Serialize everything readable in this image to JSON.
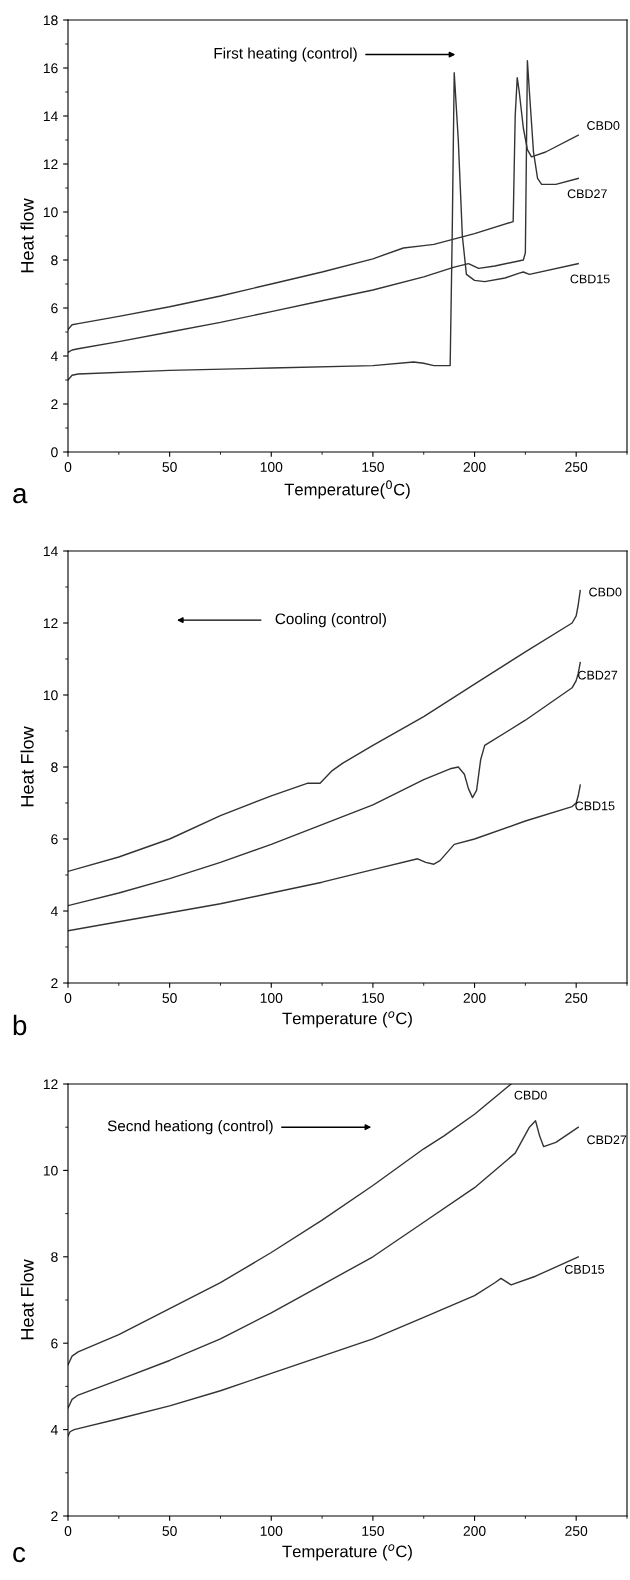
{
  "chart_data": [
    {
      "type": "line",
      "xlabel": "Temperature($^{0}$C)",
      "ylabel": "Heat flow",
      "xlim": [
        0,
        275
      ],
      "xticks": [
        0,
        50,
        100,
        150,
        200,
        250
      ],
      "ylim": [
        0,
        18
      ],
      "yticks": [
        0,
        2,
        4,
        6,
        8,
        10,
        12,
        14,
        16,
        18
      ],
      "grid": false,
      "legend": false,
      "annotations": [
        "First heating (control)",
        "a"
      ],
      "series": [
        {
          "name": "CBD0",
          "color": "#333333",
          "x": [
            0,
            2,
            5,
            25,
            50,
            75,
            100,
            125,
            150,
            165,
            175,
            180,
            200,
            219,
            220,
            221,
            222,
            224,
            226,
            228,
            235,
            251
          ],
          "values": [
            5.1,
            5.3,
            5.35,
            5.65,
            6.05,
            6.5,
            7.0,
            7.5,
            8.05,
            8.5,
            8.6,
            8.65,
            9.1,
            9.6,
            14.0,
            15.6,
            15.0,
            13.5,
            12.6,
            12.3,
            12.5,
            13.2
          ]
        },
        {
          "name": "CBD27",
          "color": "#333333",
          "x": [
            0,
            2,
            5,
            25,
            50,
            75,
            100,
            125,
            150,
            175,
            190,
            197,
            202,
            210,
            224,
            225,
            226,
            227,
            229,
            231,
            233,
            240,
            251
          ],
          "values": [
            4.15,
            4.25,
            4.3,
            4.6,
            5.0,
            5.4,
            5.85,
            6.3,
            6.75,
            7.3,
            7.7,
            7.85,
            7.65,
            7.75,
            8.0,
            8.3,
            16.3,
            15.0,
            12.5,
            11.4,
            11.15,
            11.15,
            11.4
          ]
        },
        {
          "name": "CBD15",
          "color": "#333333",
          "x": [
            0,
            2,
            5,
            50,
            100,
            150,
            170,
            175,
            180,
            188,
            189,
            190,
            192,
            194,
            196,
            200,
            205,
            215,
            222,
            224,
            227,
            251
          ],
          "values": [
            3.0,
            3.2,
            3.25,
            3.4,
            3.5,
            3.6,
            3.75,
            3.7,
            3.6,
            3.6,
            9.0,
            15.8,
            13.0,
            9.0,
            7.4,
            7.15,
            7.1,
            7.25,
            7.45,
            7.5,
            7.4,
            7.85
          ]
        }
      ]
    },
    {
      "type": "line",
      "xlabel": "Temperature ($^{o}$C)",
      "ylabel": "Heat Flow",
      "xlim": [
        0,
        275
      ],
      "xticks": [
        0,
        50,
        100,
        150,
        200,
        250
      ],
      "ylim": [
        2,
        14
      ],
      "yticks": [
        2,
        4,
        6,
        8,
        10,
        12,
        14
      ],
      "grid": false,
      "legend": false,
      "annotations": [
        "Cooling (control)",
        "b"
      ],
      "series": [
        {
          "name": "CBD0",
          "color": "#333333",
          "x": [
            0,
            25,
            50,
            75,
            100,
            118,
            124,
            130,
            135,
            150,
            175,
            200,
            225,
            248,
            250,
            251,
            252
          ],
          "values": [
            5.1,
            5.5,
            6.0,
            6.65,
            7.2,
            7.55,
            7.55,
            7.9,
            8.1,
            8.6,
            9.4,
            10.3,
            11.2,
            12.0,
            12.2,
            12.5,
            12.9
          ]
        },
        {
          "name": "CBD27",
          "color": "#333333",
          "x": [
            0,
            25,
            50,
            75,
            100,
            125,
            150,
            175,
            188,
            192,
            195,
            197,
            199,
            201,
            203,
            205,
            225,
            248,
            250,
            251,
            252
          ],
          "values": [
            4.15,
            4.5,
            4.9,
            5.35,
            5.85,
            6.4,
            6.95,
            7.65,
            7.95,
            8.0,
            7.8,
            7.4,
            7.15,
            7.35,
            8.2,
            8.6,
            9.3,
            10.2,
            10.4,
            10.6,
            10.9
          ]
        },
        {
          "name": "CBD15",
          "color": "#333333",
          "x": [
            0,
            25,
            50,
            75,
            100,
            125,
            150,
            172,
            176,
            180,
            183,
            190,
            200,
            225,
            248,
            250,
            251,
            252
          ],
          "values": [
            3.45,
            3.7,
            3.95,
            4.2,
            4.5,
            4.8,
            5.15,
            5.45,
            5.35,
            5.3,
            5.4,
            5.85,
            6.0,
            6.5,
            6.9,
            7.0,
            7.2,
            7.5
          ]
        }
      ]
    },
    {
      "type": "line",
      "xlabel": "Temperature ($^{o}$C)",
      "ylabel": "Heat Flow",
      "xlim": [
        0,
        275
      ],
      "xticks": [
        0,
        50,
        100,
        150,
        200,
        250
      ],
      "ylim": [
        2,
        12
      ],
      "yticks": [
        2,
        4,
        6,
        8,
        10,
        12
      ],
      "grid": false,
      "legend": false,
      "annotations": [
        "Secnd heationg (control)",
        "c"
      ],
      "series": [
        {
          "name": "CBD0",
          "color": "#333333",
          "x": [
            0,
            1,
            2,
            5,
            25,
            50,
            75,
            100,
            125,
            150,
            175,
            185,
            200,
            218
          ],
          "values": [
            5.5,
            5.6,
            5.7,
            5.8,
            6.2,
            6.8,
            7.4,
            8.1,
            8.85,
            9.65,
            10.5,
            10.8,
            11.3,
            12.0
          ]
        },
        {
          "name": "CBD27",
          "color": "#333333",
          "x": [
            0,
            1,
            2,
            5,
            25,
            50,
            75,
            100,
            125,
            150,
            175,
            200,
            220,
            227,
            230,
            232,
            234,
            240,
            251
          ],
          "values": [
            4.5,
            4.6,
            4.7,
            4.8,
            5.15,
            5.6,
            6.1,
            6.7,
            7.35,
            8.0,
            8.8,
            9.6,
            10.4,
            11.0,
            11.15,
            10.8,
            10.55,
            10.65,
            11.0
          ]
        },
        {
          "name": "CBD15",
          "color": "#333333",
          "x": [
            0,
            1,
            3,
            25,
            50,
            75,
            100,
            125,
            150,
            175,
            200,
            210,
            213,
            218,
            230,
            251
          ],
          "values": [
            3.85,
            3.95,
            4.0,
            4.25,
            4.55,
            4.9,
            5.3,
            5.7,
            6.1,
            6.6,
            7.1,
            7.4,
            7.5,
            7.35,
            7.55,
            8.0
          ]
        }
      ]
    }
  ]
}
